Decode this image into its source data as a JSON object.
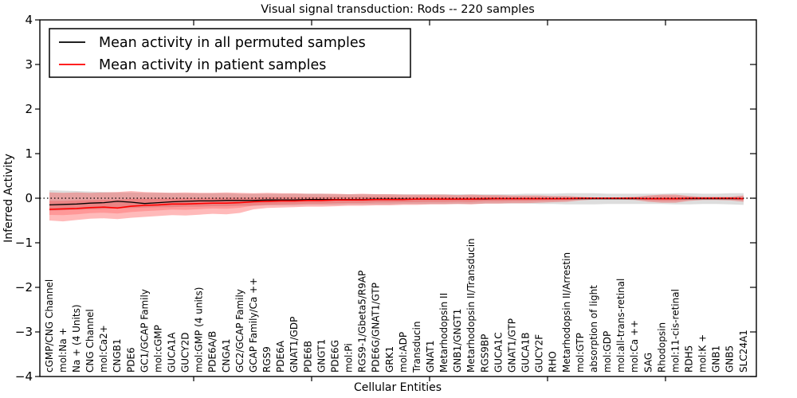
{
  "chart_data": {
    "type": "line",
    "title": "Visual signal transduction: Rods -- 220 samples",
    "xlabel": "Cellular Entities",
    "ylabel": "Inferred Activity",
    "ylim": [
      -4,
      4
    ],
    "yticks": [
      -4,
      -3,
      -2,
      -1,
      0,
      1,
      2,
      3,
      4
    ],
    "grid": false,
    "legend_position": "upper left",
    "zero_line": {
      "value": 0,
      "style": "dotted",
      "color": "#000000"
    },
    "categories": [
      "cGMP/CNG Channel",
      "mol:Na +",
      "Na + (4 Units)",
      "CNG Channel",
      "mol:Ca2+",
      "CNGB1",
      "PDE6",
      "GC1/GCAP Family",
      "mol:cGMP",
      "GUCA1A",
      "GUCY2D",
      "mol:GMP (4 units)",
      "PDE6A/B",
      "CNGA1",
      "GC2/GCAP Family",
      "GCAP Family/Ca ++",
      "RGS9",
      "PDE6A",
      "GNAT1/GDP",
      "PDE6B",
      "GNGT1",
      "PDE6G",
      "mol:Pi",
      "RGS9-1/Gbeta5/R9AP",
      "PDE6G/GNAT1/GTP",
      "GRK1",
      "mol:ADP",
      "Transducin",
      "GNAT1",
      "Metarhodopsin II",
      "GNB1/GNGT1",
      "Metarhodopsin II/Transducin",
      "RGS9BP",
      "GUCA1C",
      "GNAT1/GTP",
      "GUCA1B",
      "GUCY2F",
      "RHO",
      "Metarhodopsin II/Arrestin",
      "mol:GTP",
      "absorption of light",
      "mol:GDP",
      "mol:all-trans-retinal",
      "mol:Ca ++",
      "SAG",
      "Rhodopsin",
      "mol:11-cis-retinal",
      "RDH5",
      "mol:K +",
      "GNB1",
      "GNB5",
      "SLC24A1"
    ],
    "series": [
      {
        "name": "Mean activity in all permuted samples",
        "color": "#000000",
        "band_color": "#dddddd",
        "band_opacity": 1.0,
        "values": [
          -0.15,
          -0.14,
          -0.13,
          -0.11,
          -0.1,
          -0.07,
          -0.09,
          -0.12,
          -0.1,
          -0.08,
          -0.07,
          -0.06,
          -0.06,
          -0.05,
          -0.05,
          -0.05,
          -0.04,
          -0.04,
          -0.04,
          -0.03,
          -0.03,
          -0.03,
          -0.03,
          -0.03,
          -0.02,
          -0.02,
          -0.02,
          -0.02,
          -0.02,
          -0.02,
          -0.02,
          -0.02,
          -0.02,
          -0.01,
          -0.01,
          -0.01,
          -0.01,
          -0.01,
          -0.01,
          -0.01,
          -0.01,
          -0.01,
          -0.01,
          -0.01,
          -0.01,
          -0.01,
          -0.01,
          -0.01,
          -0.01,
          -0.01,
          -0.01,
          -0.01
        ],
        "band_upper": [
          0.18,
          0.17,
          0.16,
          0.15,
          0.14,
          0.13,
          0.13,
          0.12,
          0.12,
          0.12,
          0.11,
          0.11,
          0.11,
          0.11,
          0.1,
          0.1,
          0.1,
          0.1,
          0.1,
          0.1,
          0.1,
          0.09,
          0.09,
          0.09,
          0.09,
          0.09,
          0.09,
          0.09,
          0.09,
          0.09,
          0.09,
          0.09,
          0.09,
          0.09,
          0.09,
          0.1,
          0.1,
          0.1,
          0.11,
          0.11,
          0.11,
          0.1,
          0.1,
          0.1,
          0.1,
          0.1,
          0.11,
          0.11,
          0.1,
          0.1,
          0.11,
          0.11
        ],
        "band_lower": [
          -0.28,
          -0.27,
          -0.26,
          -0.25,
          -0.24,
          -0.23,
          -0.22,
          -0.21,
          -0.2,
          -0.2,
          -0.19,
          -0.19,
          -0.18,
          -0.18,
          -0.17,
          -0.17,
          -0.16,
          -0.16,
          -0.16,
          -0.15,
          -0.15,
          -0.15,
          -0.14,
          -0.14,
          -0.14,
          -0.14,
          -0.13,
          -0.13,
          -0.13,
          -0.13,
          -0.13,
          -0.13,
          -0.12,
          -0.12,
          -0.12,
          -0.12,
          -0.13,
          -0.13,
          -0.14,
          -0.14,
          -0.14,
          -0.13,
          -0.13,
          -0.13,
          -0.13,
          -0.13,
          -0.14,
          -0.14,
          -0.13,
          -0.13,
          -0.14,
          -0.15
        ]
      },
      {
        "name": "Mean activity in patient samples",
        "color": "#ff0000",
        "band_color": "#ff0000",
        "band_opacity": 0.27,
        "values": [
          -0.25,
          -0.24,
          -0.23,
          -0.21,
          -0.2,
          -0.22,
          -0.18,
          -0.16,
          -0.15,
          -0.13,
          -0.13,
          -0.12,
          -0.11,
          -0.11,
          -0.1,
          -0.08,
          -0.07,
          -0.06,
          -0.06,
          -0.05,
          -0.05,
          -0.04,
          -0.04,
          -0.04,
          -0.03,
          -0.03,
          -0.03,
          -0.02,
          -0.02,
          -0.02,
          -0.02,
          -0.02,
          -0.01,
          -0.01,
          -0.01,
          -0.01,
          -0.01,
          -0.01,
          -0.01,
          0.0,
          0.0,
          0.0,
          0.0,
          0.0,
          -0.01,
          -0.01,
          -0.01,
          0.0,
          0.0,
          0.0,
          0.0,
          -0.01
        ],
        "band_upper": [
          0.13,
          0.12,
          0.13,
          0.12,
          0.13,
          0.14,
          0.16,
          0.14,
          0.13,
          0.12,
          0.13,
          0.12,
          0.12,
          0.13,
          0.12,
          0.11,
          0.12,
          0.11,
          0.11,
          0.1,
          0.1,
          0.1,
          0.09,
          0.1,
          0.09,
          0.09,
          0.08,
          0.08,
          0.08,
          0.08,
          0.07,
          0.08,
          0.07,
          0.07,
          0.06,
          0.06,
          0.06,
          0.05,
          0.05,
          0.03,
          0.02,
          0.02,
          0.02,
          0.03,
          0.06,
          0.08,
          0.08,
          0.05,
          0.03,
          0.03,
          0.03,
          0.06
        ],
        "band_lower": [
          -0.5,
          -0.52,
          -0.49,
          -0.46,
          -0.45,
          -0.47,
          -0.44,
          -0.42,
          -0.4,
          -0.38,
          -0.39,
          -0.37,
          -0.35,
          -0.36,
          -0.33,
          -0.25,
          -0.22,
          -0.21,
          -0.2,
          -0.19,
          -0.19,
          -0.18,
          -0.17,
          -0.17,
          -0.16,
          -0.16,
          -0.15,
          -0.15,
          -0.14,
          -0.14,
          -0.13,
          -0.14,
          -0.12,
          -0.12,
          -0.11,
          -0.11,
          -0.1,
          -0.09,
          -0.08,
          -0.05,
          -0.03,
          -0.03,
          -0.03,
          -0.04,
          -0.08,
          -0.1,
          -0.1,
          -0.06,
          -0.04,
          -0.04,
          -0.05,
          -0.08
        ]
      }
    ]
  }
}
